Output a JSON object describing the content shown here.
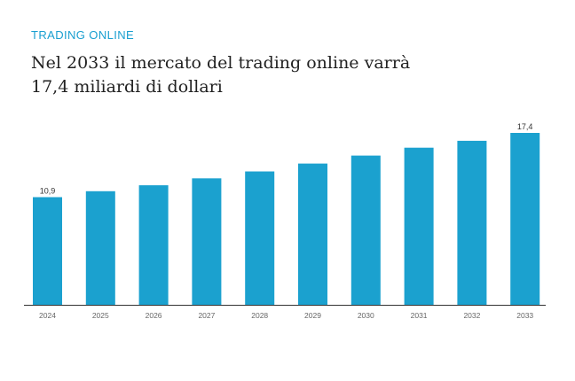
{
  "header": {
    "kicker": "TRADING ONLINE",
    "title_line1": "Nel 2033 il mercato del trading online varrà",
    "title_line2": "17,4 miliardi di dollari"
  },
  "colors": {
    "accent": "#1a9fd0",
    "bar": "#1ba1cf",
    "title": "#222222",
    "axis": "#333333",
    "tick": "#666666"
  },
  "chart_data": {
    "type": "bar",
    "title": "Nel 2033 il mercato del trading online varrà 17,4 miliardi di dollari",
    "xlabel": "",
    "ylabel": "",
    "categories": [
      "2024",
      "2025",
      "2026",
      "2027",
      "2028",
      "2029",
      "2030",
      "2031",
      "2032",
      "2033"
    ],
    "values": [
      10.9,
      11.5,
      12.1,
      12.8,
      13.5,
      14.3,
      15.1,
      15.9,
      16.6,
      17.4
    ],
    "data_labels": [
      {
        "index": 0,
        "text": "10,9"
      },
      {
        "index": 9,
        "text": "17,4"
      }
    ],
    "ylim": [
      0,
      17.4
    ],
    "grid": false,
    "legend": "none"
  }
}
